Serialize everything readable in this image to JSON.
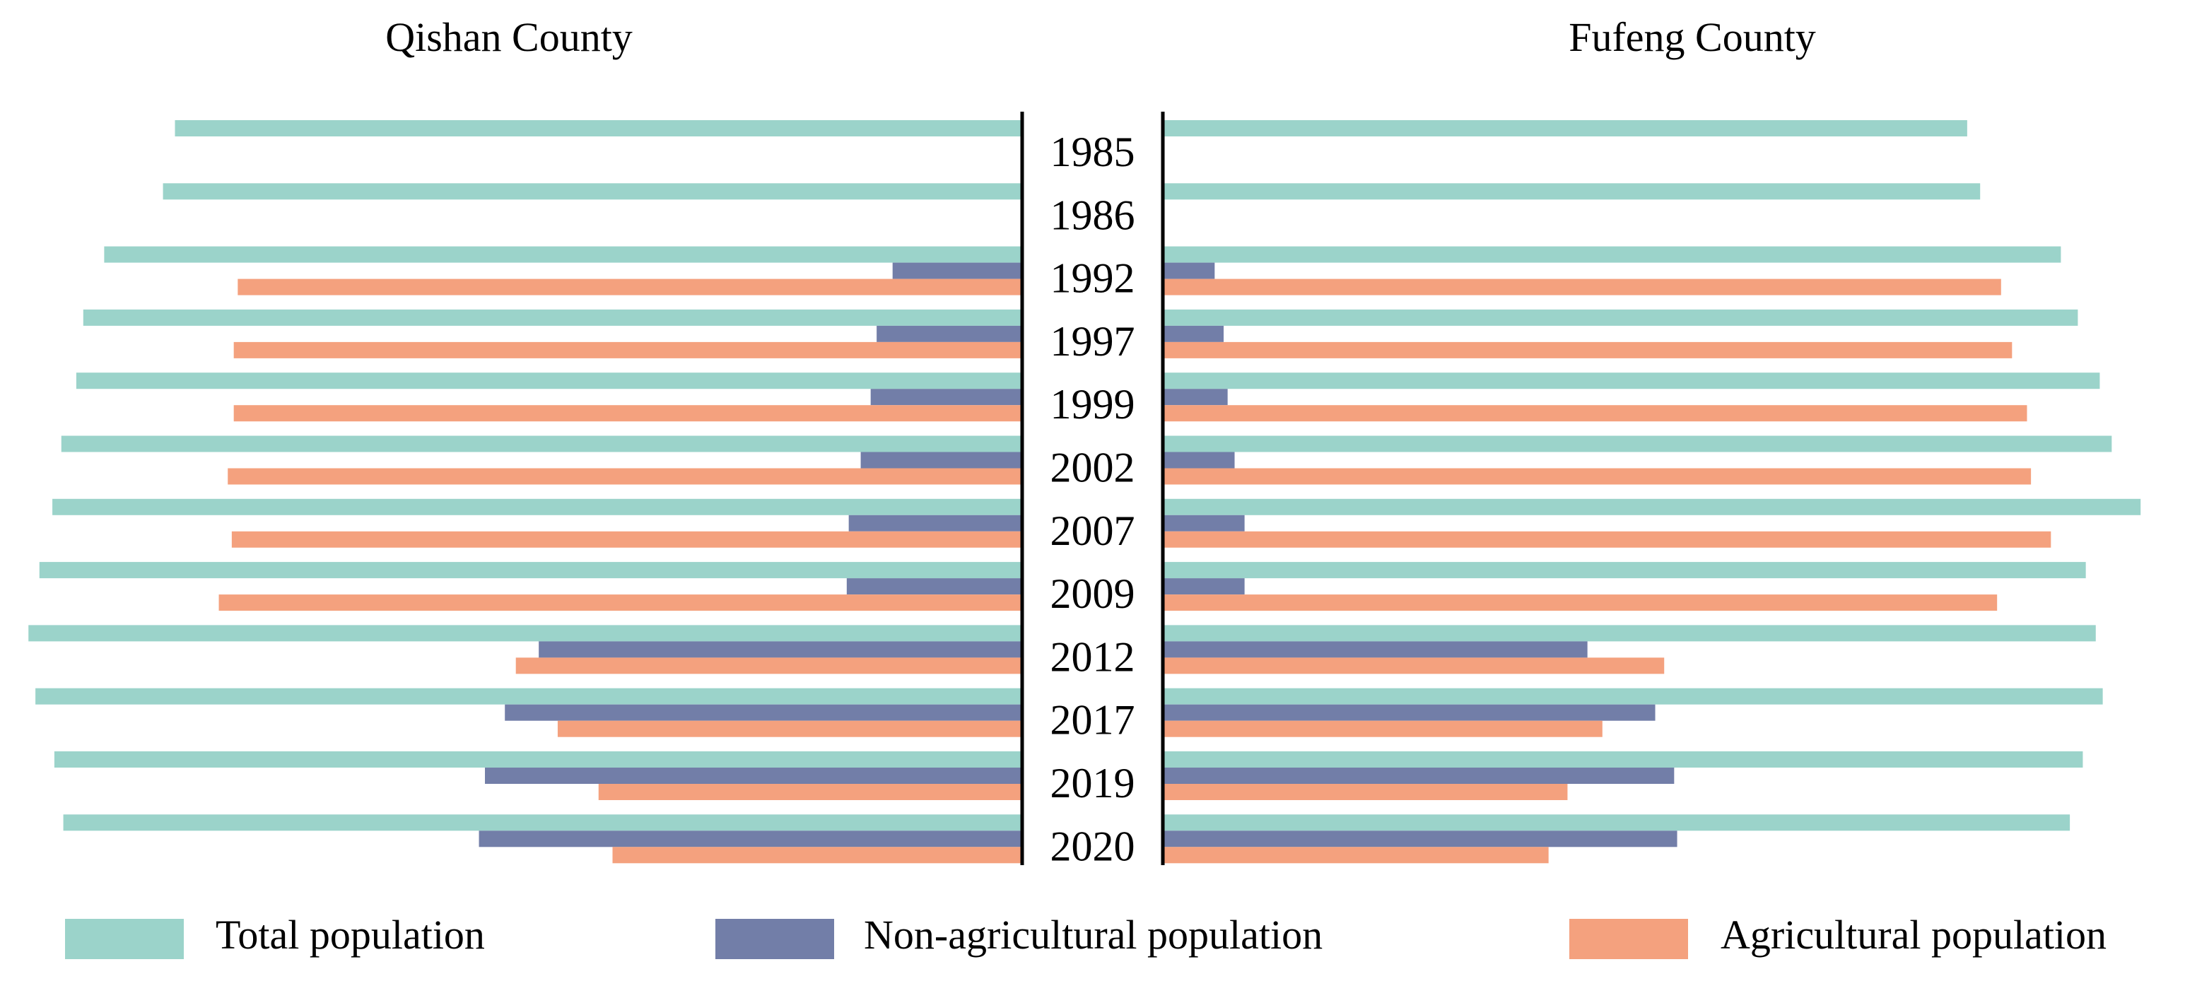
{
  "chart_data": {
    "type": "bar",
    "orientation": "horizontal-mirrored",
    "categories": [
      "1985",
      "1986",
      "1992",
      "1997",
      "1999",
      "2002",
      "2007",
      "2009",
      "2012",
      "2017",
      "2019",
      "2020"
    ],
    "x_range": [
      0,
      100
    ],
    "panels": [
      {
        "title": "Qishan County",
        "direction": "left",
        "series": [
          {
            "name": "Total population",
            "values": [
              85.0,
              86.2,
              92.1,
              94.2,
              94.9,
              96.4,
              97.3,
              98.6,
              99.7,
              99.0,
              97.1,
              96.2
            ]
          },
          {
            "name": "Non-agricultural population",
            "values": [
              null,
              null,
              13.0,
              14.6,
              15.2,
              16.2,
              17.4,
              17.6,
              48.5,
              51.9,
              53.9,
              54.5
            ]
          },
          {
            "name": "Agricultural population",
            "values": [
              null,
              null,
              78.7,
              79.1,
              79.1,
              79.7,
              79.3,
              80.6,
              50.8,
              46.6,
              42.5,
              41.1
            ]
          }
        ]
      },
      {
        "title": "Fufeng County",
        "direction": "right",
        "series": [
          {
            "name": "Total population",
            "values": [
              80.7,
              82.0,
              90.1,
              91.8,
              94.0,
              95.2,
              98.1,
              92.6,
              93.6,
              94.3,
              92.3,
              91.0
            ]
          },
          {
            "name": "Non-agricultural population",
            "values": [
              null,
              null,
              5.2,
              6.1,
              6.5,
              7.2,
              8.2,
              8.2,
              42.6,
              49.4,
              51.3,
              51.6
            ]
          },
          {
            "name": "Agricultural population",
            "values": [
              null,
              null,
              84.1,
              85.2,
              86.7,
              87.1,
              89.1,
              83.7,
              50.3,
              44.1,
              40.6,
              38.7
            ]
          }
        ]
      }
    ],
    "legend": [
      {
        "label": "Total population",
        "color": "#9bd3ca"
      },
      {
        "label": "Non-agricultural population",
        "color": "#727ea8"
      },
      {
        "label": "Agricultural population",
        "color": "#f4a17e"
      }
    ],
    "legend_position": "bottom"
  }
}
